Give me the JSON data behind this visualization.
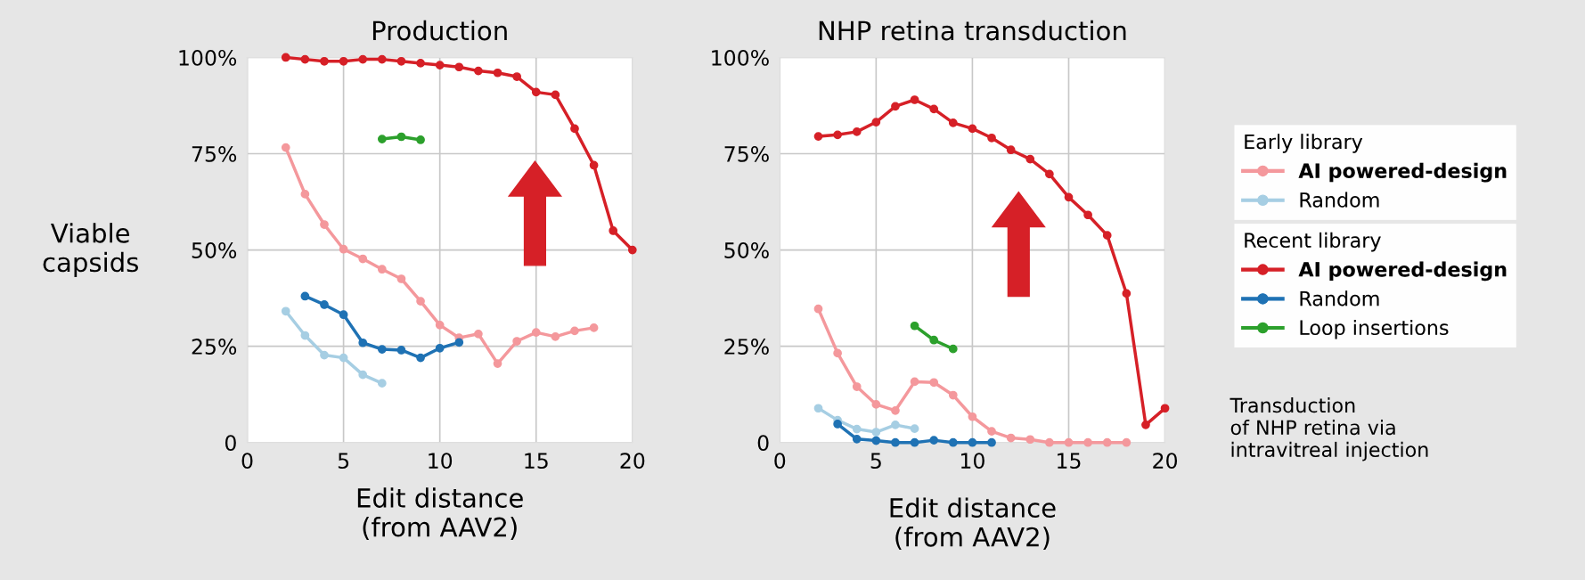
{
  "chart_data": [
    {
      "type": "line",
      "title": "Production",
      "xlabel": "Edit distance\n(from AAV2)",
      "ylabel": "Viable\ncapsids",
      "xlim": [
        0,
        20
      ],
      "xticks": [
        0,
        5,
        10,
        15,
        20
      ],
      "ylim": [
        0,
        100
      ],
      "yticks": [
        {
          "value": 0,
          "label": "0"
        },
        {
          "value": 25,
          "label": "25%"
        },
        {
          "value": 50,
          "label": "50%"
        },
        {
          "value": 75,
          "label": "75%"
        },
        {
          "value": 100,
          "label": "100%"
        }
      ],
      "grid": true,
      "marker": "circle",
      "line_style": "solid",
      "legend": "right",
      "legend_title": "Early library",
      "series": [
        {
          "name": "AI powered-design",
          "color": "#f4989c",
          "x": [
            2,
            3,
            4,
            5,
            6,
            7,
            8,
            9,
            10,
            11,
            12,
            13,
            14,
            15,
            16,
            17,
            18
          ],
          "values": [
            76.6,
            64.5,
            56.6,
            50.2,
            47.7,
            45,
            42.5,
            36.7,
            30.5,
            27.2,
            28.2,
            20.5,
            26.3,
            28.6,
            27.5,
            29,
            29.8
          ]
        },
        {
          "name": "Random",
          "color": "#a6cee3",
          "x": [
            2,
            3,
            4,
            5,
            6,
            7
          ],
          "values": [
            34.1,
            27.8,
            22.7,
            22,
            17.6,
            15.4
          ]
        },
        {
          "name": "AI powered-design",
          "color": "#d62027",
          "x": [
            2,
            3,
            4,
            5,
            6,
            7,
            8,
            9,
            10,
            11,
            12,
            13,
            14,
            15,
            16,
            17,
            18,
            19,
            20
          ],
          "values": [
            100,
            99.5,
            99,
            99,
            99.5,
            99.5,
            99,
            98.5,
            98,
            97.5,
            96.5,
            96,
            95,
            91,
            90.3,
            81.5,
            72,
            55,
            50
          ]
        },
        {
          "name": "Random",
          "color": "#1f72b4",
          "x": [
            3,
            4,
            5,
            6,
            7,
            8,
            9,
            10,
            11
          ],
          "values": [
            38,
            35.8,
            33.2,
            25.9,
            24.2,
            24,
            22,
            24.5,
            26
          ]
        },
        {
          "name": "Loop insertions",
          "color": "#2ca02c",
          "x": [
            7,
            8,
            9
          ],
          "values": [
            78.8,
            79.4,
            78.6
          ]
        }
      ]
    },
    {
      "type": "line",
      "title": "NHP retina transduction",
      "xlabel": "Edit distance\n(from AAV2)",
      "xlim": [
        0,
        20
      ],
      "xticks": [
        0,
        5,
        10,
        15,
        20
      ],
      "ylim": [
        0,
        100
      ],
      "yticks": [
        {
          "value": 0,
          "label": "0"
        },
        {
          "value": 25,
          "label": "25%"
        },
        {
          "value": 50,
          "label": "50%"
        },
        {
          "value": 75,
          "label": "75%"
        },
        {
          "value": 100,
          "label": "100%"
        }
      ],
      "grid": true,
      "marker": "circle",
      "line_style": "solid",
      "legend": "right",
      "legend_title": "Recent library",
      "annotations": [
        "Transduction\nof NHP retina via\nintravitreal injection"
      ],
      "series": [
        {
          "color": "#f4989c",
          "x": [
            2,
            3,
            4,
            5,
            6,
            7,
            8,
            9,
            10,
            11,
            12,
            13,
            14,
            15,
            16,
            17,
            18
          ],
          "values": [
            34.7,
            23.2,
            14.5,
            9.9,
            8.3,
            15.8,
            15.6,
            12.3,
            6.7,
            2.9,
            1.2,
            0.8,
            0,
            0,
            0,
            0,
            0
          ]
        },
        {
          "color": "#a6cee3",
          "x": [
            2,
            3,
            4,
            5,
            6,
            7
          ],
          "values": [
            8.9,
            5.8,
            3.5,
            2.7,
            4.6,
            3.6
          ]
        },
        {
          "color": "#d62027",
          "x": [
            2,
            3,
            4,
            5,
            6,
            7,
            8,
            9,
            10,
            11,
            12,
            13,
            14,
            15,
            16,
            17,
            18,
            19,
            20
          ],
          "values": [
            79.5,
            79.9,
            80.7,
            83.2,
            87.3,
            89,
            86.6,
            83,
            81.5,
            79.1,
            76,
            73.6,
            69.7,
            63.7,
            59.1,
            53.8,
            38.7,
            4.6,
            8.9
          ]
        },
        {
          "color": "#1f72b4",
          "x": [
            3,
            4,
            5,
            6,
            7,
            8,
            9,
            10,
            11
          ],
          "values": [
            4.8,
            0.9,
            0.5,
            0,
            0,
            0.6,
            0,
            0,
            0
          ]
        },
        {
          "color": "#2ca02c",
          "x": [
            7,
            8,
            9
          ],
          "values": [
            30.3,
            26.6,
            24.3
          ]
        }
      ]
    }
  ]
}
